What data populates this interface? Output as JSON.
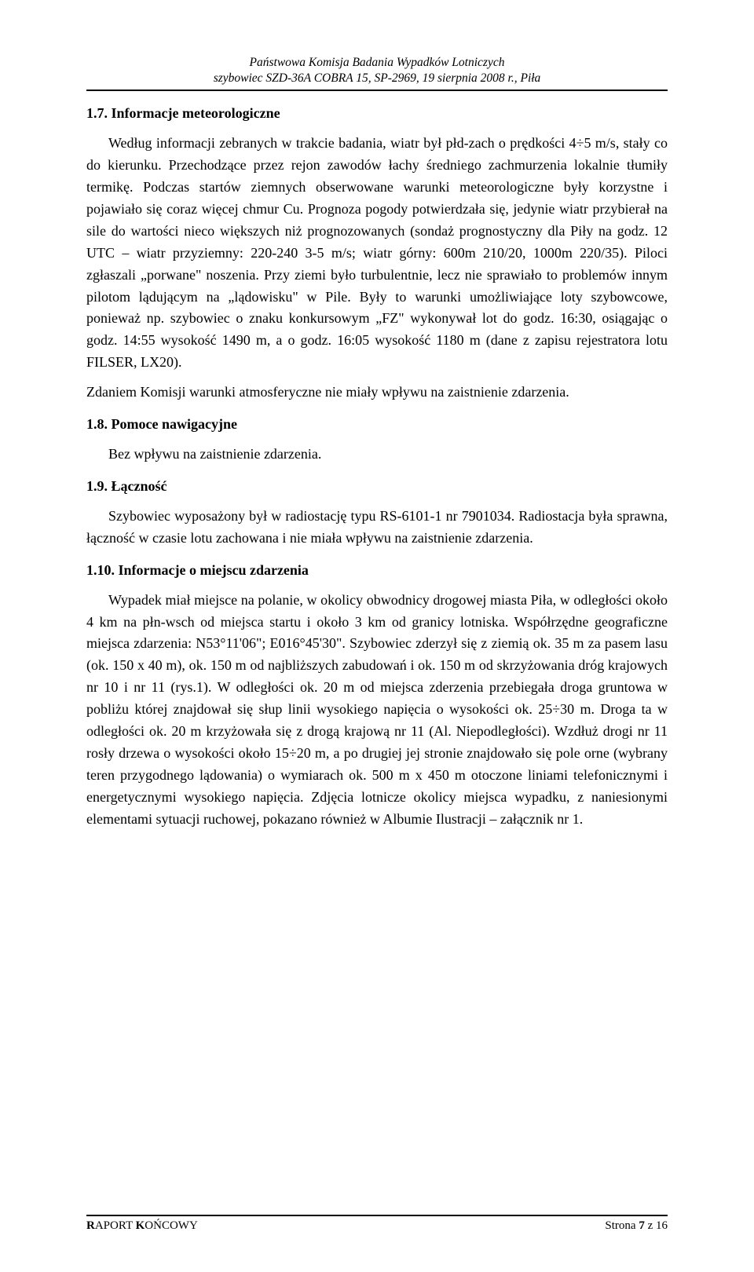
{
  "header": {
    "line1": "Państwowa Komisja Badania Wypadków Lotniczych",
    "line2": "szybowiec SZD-36A COBRA 15, SP-2969, 19 sierpnia 2008 r., Piła"
  },
  "sections": {
    "s17": {
      "title": "1.7. Informacje meteorologiczne",
      "p1": "Według informacji zebranych w trakcie badania, wiatr był płd-zach o prędkości 4÷5 m/s, stały co do kierunku. Przechodzące przez rejon zawodów łachy średniego zachmurzenia lokalnie tłumiły termikę. Podczas startów ziemnych obserwowane warunki meteorologiczne były korzystne i pojawiało się coraz więcej chmur Cu. Prognoza pogody potwierdzała się, jedynie wiatr przybierał na sile do wartości nieco większych niż prognozowanych (sondaż prognostyczny dla Piły na godz. 12 UTC – wiatr przyziemny: 220-240 3-5 m/s; wiatr górny: 600m 210/20, 1000m 220/35). Piloci zgłaszali „porwane\" noszenia. Przy ziemi było turbulentnie, lecz nie sprawiało to problemów innym pilotom lądującym na „lądowisku\" w Pile. Były to warunki umożliwiające loty szybowcowe, ponieważ np. szybowiec o znaku konkursowym „FZ\" wykonywał lot do godz. 16:30, osiągając o godz. 14:55 wysokość 1490 m, a o godz. 16:05 wysokość 1180 m (dane z zapisu rejestratora lotu FILSER, LX20).",
      "p2": "Zdaniem Komisji warunki atmosferyczne nie miały wpływu na zaistnienie zdarzenia."
    },
    "s18": {
      "title": "1.8. Pomoce nawigacyjne",
      "p1": "Bez wpływu na zaistnienie zdarzenia."
    },
    "s19": {
      "title": "1.9. Łączność",
      "p1": "Szybowiec wyposażony był w radiostację typu RS-6101-1 nr 7901034. Radiostacja była sprawna, łączność w czasie lotu zachowana i nie miała wpływu na zaistnienie zdarzenia."
    },
    "s110": {
      "title": "1.10. Informacje o miejscu zdarzenia",
      "p1": "Wypadek miał miejsce na polanie, w okolicy obwodnicy drogowej miasta Piła, w odległości około 4 km na płn-wsch od miejsca startu i około 3 km od granicy lotniska. Współrzędne geograficzne miejsca zdarzenia: N53°11'06\"; E016°45'30\". Szybowiec zderzył się z ziemią ok. 35 m za pasem lasu (ok. 150 x 40 m), ok. 150 m od najbliższych zabudowań i ok. 150 m od skrzyżowania dróg krajowych nr 10 i nr 11 (rys.1). W odległości ok. 20 m od miejsca zderzenia przebiegała droga gruntowa w pobliżu której znajdował się słup linii wysokiego napięcia o wysokości ok. 25÷30 m. Droga ta w odległości ok. 20 m krzyżowała się z drogą krajową nr 11 (Al. Niepodległości). Wzdłuż drogi nr 11 rosły drzewa o wysokości około 15÷20 m, a po drugiej jej stronie znajdowało się pole orne (wybrany teren przygodnego lądowania) o wymiarach ok. 500 m x 450 m otoczone liniami telefonicznymi i energetycznymi wysokiego napięcia. Zdjęcia lotnicze okolicy miejsca wypadku, z naniesionymi elementami sytuacji ruchowej, pokazano również w Albumie Ilustracji – załącznik nr 1."
    }
  },
  "footer": {
    "left": "RAPORT KOŃCOWY",
    "right_prefix": "Strona ",
    "page_current": "7",
    "right_mid": " z ",
    "page_total": "16"
  },
  "style": {
    "body_font_size_pt": 13.5,
    "header_font_size_pt": 11.5,
    "text_color": "#000000",
    "background_color": "#ffffff",
    "rule_color": "#000000",
    "font_family": "Times New Roman"
  }
}
